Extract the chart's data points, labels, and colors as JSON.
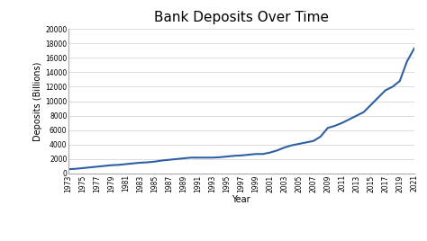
{
  "title": "Bank Deposits Over Time",
  "xlabel": "Year",
  "ylabel": "Deposits (Billions)",
  "line_color": "#2e5fa3",
  "background_color": "#ffffff",
  "years": [
    1973,
    1974,
    1975,
    1976,
    1977,
    1978,
    1979,
    1980,
    1981,
    1982,
    1983,
    1984,
    1985,
    1986,
    1987,
    1988,
    1989,
    1990,
    1991,
    1992,
    1993,
    1994,
    1995,
    1996,
    1997,
    1998,
    1999,
    2000,
    2001,
    2002,
    2003,
    2004,
    2005,
    2006,
    2007,
    2008,
    2009,
    2010,
    2011,
    2012,
    2013,
    2014,
    2015,
    2016,
    2017,
    2018,
    2019,
    2020,
    2021
  ],
  "deposits": [
    600,
    650,
    750,
    850,
    950,
    1050,
    1150,
    1200,
    1300,
    1400,
    1500,
    1550,
    1650,
    1800,
    1900,
    2000,
    2100,
    2200,
    2200,
    2200,
    2200,
    2250,
    2350,
    2450,
    2500,
    2600,
    2700,
    2700,
    2900,
    3200,
    3600,
    3900,
    4100,
    4300,
    4500,
    5100,
    6300,
    6600,
    7000,
    7500,
    8000,
    8500,
    9500,
    10500,
    11500,
    12000,
    12800,
    15500,
    17300
  ],
  "yticks": [
    0,
    2000,
    4000,
    6000,
    8000,
    10000,
    12000,
    14000,
    16000,
    18000,
    20000
  ],
  "xtick_years": [
    1973,
    1975,
    1977,
    1979,
    1981,
    1983,
    1985,
    1987,
    1989,
    1991,
    1993,
    1995,
    1997,
    1999,
    2001,
    2003,
    2005,
    2007,
    2009,
    2011,
    2013,
    2015,
    2017,
    2019,
    2021
  ],
  "ylim": [
    0,
    20000
  ],
  "xlim": [
    1973,
    2021
  ],
  "grid_color": "#d0d0d0",
  "line_width": 1.5,
  "title_fontsize": 11,
  "axis_label_fontsize": 7,
  "tick_fontsize": 5.5,
  "figsize": [
    4.74,
    2.68
  ],
  "dpi": 100
}
